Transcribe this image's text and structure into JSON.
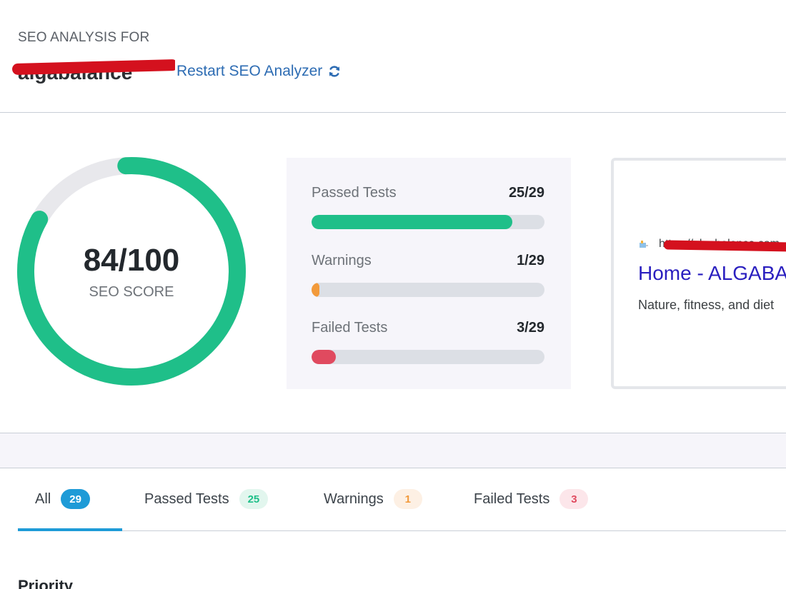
{
  "header": {
    "analysis_label": "SEO ANALYSIS FOR",
    "site_name": "algabalance",
    "restart_link": "Restart SEO Analyzer",
    "restart_icon": "refresh-icon"
  },
  "score": {
    "value": "84/100",
    "label": "SEO SCORE",
    "fraction": 0.84,
    "color": "#1fbf89",
    "track_color": "#e8e8ec"
  },
  "stats": [
    {
      "label": "Passed Tests",
      "value": "25/29",
      "fraction": 0.862,
      "color": "#1fbf89"
    },
    {
      "label": "Warnings",
      "value": "1/29",
      "fraction": 0.034,
      "color": "#f29a3b"
    },
    {
      "label": "Failed Tests",
      "value": "3/29",
      "fraction": 0.103,
      "color": "#e04a5f"
    }
  ],
  "preview": {
    "url": "https://algabalance.com",
    "title": "Home - ALGABALANCE",
    "description": "Nature, fitness, and diet"
  },
  "tabs": [
    {
      "label": "All",
      "count": "29",
      "badge_bg": "#1e9bd7",
      "badge_fg": "#ffffff",
      "active": true
    },
    {
      "label": "Passed Tests",
      "count": "25",
      "badge_bg": "#e2f6ee",
      "badge_fg": "#1fbf89",
      "active": false
    },
    {
      "label": "Warnings",
      "count": "1",
      "badge_bg": "#fdf0e4",
      "badge_fg": "#f29a3b",
      "active": false
    },
    {
      "label": "Failed Tests",
      "count": "3",
      "badge_bg": "#fce6ea",
      "badge_fg": "#e04a5f",
      "active": false
    }
  ],
  "section_heading": "Priority"
}
